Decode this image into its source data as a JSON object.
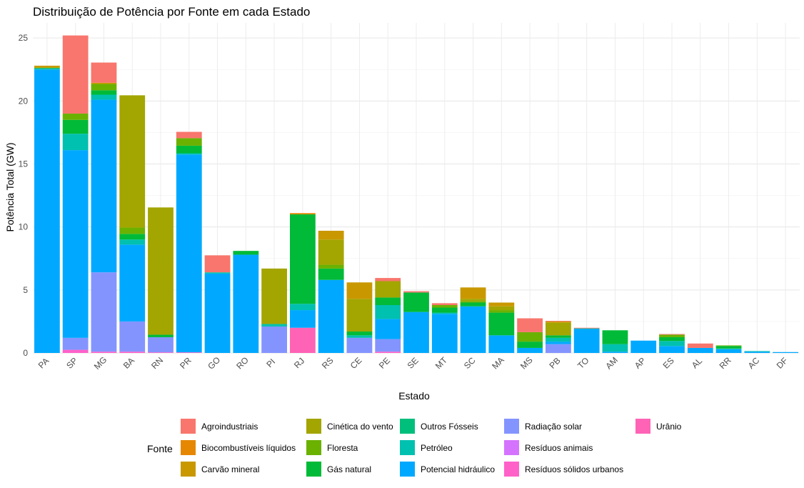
{
  "chart_data": {
    "type": "bar",
    "stacked": true,
    "title": "Distribuição de Potência por Fonte em cada Estado",
    "xlabel": "Estado",
    "ylabel": "Potência Total (GW)",
    "ylim": [
      0,
      26.2
    ],
    "yticks": [
      0,
      5,
      10,
      15,
      20,
      25
    ],
    "grid": true,
    "legend_position": "bottom",
    "legend_title": "Fonte",
    "categories": [
      "PA",
      "SP",
      "MG",
      "BA",
      "RN",
      "PR",
      "GO",
      "RO",
      "PI",
      "RJ",
      "RS",
      "CE",
      "PE",
      "SE",
      "MT",
      "SC",
      "MA",
      "MS",
      "PB",
      "TO",
      "AM",
      "AP",
      "ES",
      "AL",
      "RR",
      "AC",
      "DF"
    ],
    "series": [
      {
        "name": "Agroindustriais",
        "color": "#F8766D",
        "values": [
          0,
          6.2,
          1.6,
          0,
          0,
          0.5,
          1.35,
          0,
          0,
          0,
          0,
          0,
          0.25,
          0.1,
          0.15,
          0,
          0,
          1.1,
          0.05,
          0.05,
          0,
          0,
          0.05,
          0.35,
          0,
          0,
          0
        ]
      },
      {
        "name": "Biocombustíveis líquidos",
        "color": "#E58700",
        "values": [
          0,
          0,
          0,
          0,
          0,
          0,
          0,
          0,
          0,
          0.1,
          0,
          0,
          0,
          0,
          0,
          0,
          0,
          0,
          0,
          0,
          0,
          0,
          0,
          0,
          0,
          0,
          0
        ]
      },
      {
        "name": "Carvão mineral",
        "color": "#C99800",
        "values": [
          0.15,
          0,
          0.1,
          0,
          0,
          0,
          0,
          0,
          0,
          0,
          0.7,
          1.3,
          0,
          0,
          0,
          0.9,
          0.3,
          0,
          0.1,
          0,
          0,
          0,
          0,
          0,
          0,
          0,
          0
        ]
      },
      {
        "name": "Cinética do vento",
        "color": "#A3A500",
        "values": [
          0,
          0,
          0,
          10.5,
          10.1,
          0,
          0,
          0,
          4.4,
          0,
          2.0,
          2.6,
          1.3,
          0,
          0,
          0.2,
          0.3,
          0,
          1.0,
          0,
          0,
          0,
          0,
          0,
          0,
          0,
          0
        ]
      },
      {
        "name": "Floresta",
        "color": "#6BB100",
        "values": [
          0.05,
          0.5,
          0.5,
          0.5,
          0,
          0.6,
          0,
          0,
          0,
          0,
          0.3,
          0,
          0,
          0,
          0.2,
          0.1,
          0.2,
          0.75,
          0,
          0,
          0,
          0,
          0.2,
          0,
          0.05,
          0,
          0
        ]
      },
      {
        "name": "Gás natural",
        "color": "#00BA38",
        "values": [
          0,
          1.1,
          0.35,
          0.45,
          0.2,
          0.6,
          0,
          0.3,
          0,
          7.1,
          0.9,
          0.3,
          0.6,
          1.55,
          0.4,
          0.3,
          1.8,
          0.5,
          0.2,
          0,
          1.1,
          0,
          0.3,
          0,
          0.2,
          0,
          0
        ]
      },
      {
        "name": "Outros Fósseis",
        "color": "#00BF7D",
        "values": [
          0,
          0,
          0,
          0,
          0,
          0,
          0,
          0,
          0,
          0,
          0,
          0,
          0,
          0,
          0,
          0,
          0,
          0,
          0,
          0,
          0,
          0,
          0,
          0,
          0,
          0,
          0
        ]
      },
      {
        "name": "Petróleo",
        "color": "#00C0AF",
        "values": [
          0.1,
          1.3,
          0.4,
          0.4,
          0,
          0.1,
          0.1,
          0,
          0.2,
          0.5,
          0,
          0.2,
          1.1,
          0,
          0.1,
          0,
          0,
          0,
          0.3,
          0.05,
          0.6,
          0,
          0.4,
          0,
          0.05,
          0.05,
          0
        ]
      },
      {
        "name": "Potencial hidráulico",
        "color": "#00A9FF",
        "values": [
          22.5,
          14.9,
          13.7,
          6.1,
          0,
          15.7,
          6.3,
          7.8,
          0,
          1.4,
          5.8,
          0,
          1.6,
          3.25,
          3.1,
          3.7,
          1.4,
          0.4,
          0.2,
          1.9,
          0.1,
          0.98,
          0.55,
          0.4,
          0.3,
          0.1,
          0.07
        ]
      },
      {
        "name": "Radiação solar",
        "color": "#8494FF",
        "values": [
          0,
          0.95,
          6.3,
          2.4,
          1.2,
          0,
          0,
          0,
          2.1,
          0,
          0,
          1.2,
          1.0,
          0,
          0,
          0,
          0,
          0,
          0.7,
          0,
          0,
          0,
          0,
          0,
          0,
          0,
          0
        ]
      },
      {
        "name": "Resíduos animais",
        "color": "#D573FF",
        "values": [
          0,
          0,
          0,
          0,
          0,
          0,
          0,
          0,
          0,
          0,
          0,
          0,
          0,
          0,
          0,
          0,
          0,
          0,
          0,
          0,
          0,
          0,
          0,
          0,
          0,
          0,
          0
        ]
      },
      {
        "name": "Resíduos sólidos urbanos",
        "color": "#FF61C9",
        "values": [
          0,
          0.25,
          0.1,
          0.1,
          0.05,
          0.05,
          0,
          0,
          0,
          0,
          0,
          0,
          0.1,
          0,
          0,
          0,
          0,
          0,
          0,
          0,
          0,
          0,
          0,
          0,
          0,
          0,
          0
        ]
      },
      {
        "name": "Urânio",
        "color": "#FF63B6",
        "values": [
          0,
          0,
          0,
          0,
          0,
          0,
          0,
          0,
          0,
          2.0,
          0,
          0,
          0,
          0,
          0,
          0,
          0,
          0,
          0,
          0,
          0,
          0,
          0,
          0,
          0,
          0,
          0
        ]
      }
    ]
  }
}
